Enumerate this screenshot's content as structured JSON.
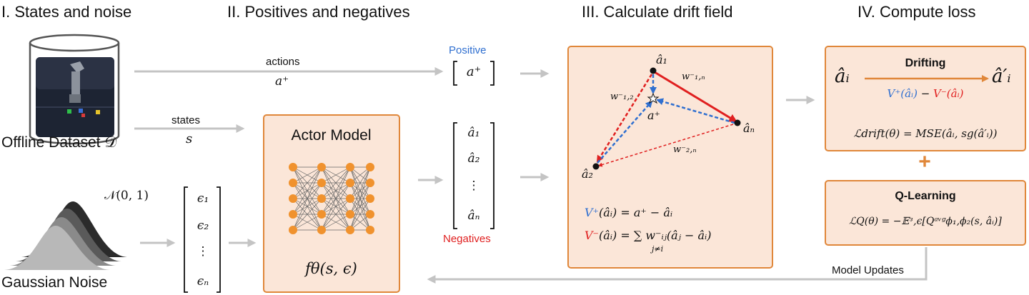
{
  "headers": {
    "s1": "I. States and noise",
    "s2": "II. Positives and negatives",
    "s3": "III. Calculate drift field",
    "s4": "IV. Compute loss"
  },
  "dataset_label": "Offline Dataset 𝒟",
  "noise_label": "Gaussian Noise",
  "normal_label": "𝒩(0, 1)",
  "arrows": {
    "actions": "actions",
    "actions_sym": "a⁺",
    "states": "states",
    "states_sym": "s",
    "model_updates": "Model Updates"
  },
  "eps_vector": [
    "ϵ₁",
    "ϵ₂",
    "⋮",
    "ϵₙ"
  ],
  "actor": {
    "title": "Actor Model",
    "func": "fθ(s, ϵ)"
  },
  "positive_label": "Positive",
  "positive_sym": "a⁺",
  "negatives_label": "Negatives",
  "neg_vector": [
    "â₁",
    "â₂",
    "⋮",
    "âₙ"
  ],
  "drift": {
    "a1": "â₁",
    "a2": "â₂",
    "aN": "âₙ",
    "aplus": "a⁺",
    "w12": "w⁻₁,₂",
    "w1N": "w⁻₁,ₙ",
    "w2N": "w⁻₂,ₙ",
    "vplus_lhs": "V⁺",
    "vplus_rhs": "(âᵢ) = a⁺ − âᵢ",
    "vminus_lhs": "V⁻",
    "vminus_rhs": "(âᵢ) = ∑ w⁻ᵢⱼ(âⱼ − âᵢ)",
    "sum_index": "j≠i"
  },
  "drifting": {
    "title": "Drifting",
    "left": "âᵢ",
    "right": "â′ᵢ",
    "vplus": "V⁺(âᵢ)",
    "minus": " − ",
    "vminus": "V⁻(âᵢ)",
    "loss": "ℒdrift(θ) = MSE(âᵢ, sg(â′ᵢ))"
  },
  "qlearning": {
    "title": "Q-Learning",
    "loss": "ℒQ(θ) = −𝔼ᶟ,ϵ[Qᵃᵛᵍϕ₁,ϕ₂(s, âᵢ)]"
  },
  "plus_sign": "+",
  "colors": {
    "accent_orange": "#e0873a",
    "box_fill": "#fbe6d8",
    "positive_blue": "#2f6fd0",
    "negative_red": "#e02020",
    "arrow_gray": "#c4c4c4",
    "node_orange": "#f0922e"
  }
}
